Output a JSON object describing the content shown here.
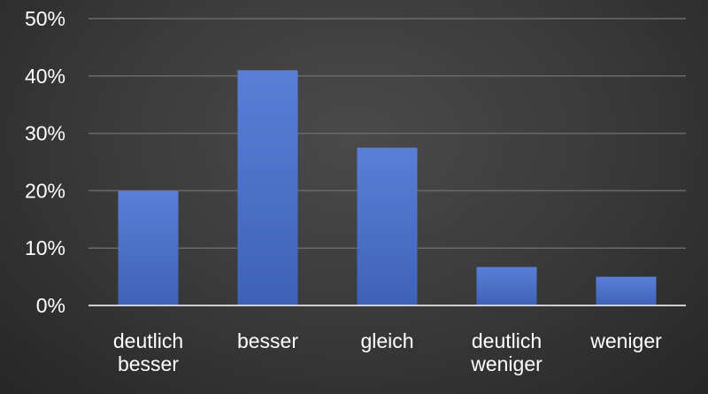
{
  "chart_data": {
    "type": "bar",
    "categories": [
      [
        "deutlich",
        "besser"
      ],
      [
        "besser"
      ],
      [
        "gleich"
      ],
      [
        "deutlich",
        "weniger"
      ],
      [
        "weniger"
      ]
    ],
    "values": [
      20,
      41,
      27.5,
      6.7,
      5
    ],
    "unit": "%",
    "ylim": [
      0,
      50
    ],
    "yticks": [
      0,
      10,
      20,
      30,
      40,
      50
    ],
    "ytick_labels": [
      "0%",
      "10%",
      "20%",
      "30%",
      "40%",
      "50%"
    ],
    "grid": true,
    "legend": "none",
    "title": "",
    "xlabel": "",
    "ylabel": "",
    "colors": {
      "bar_top": "#5a7fd6",
      "bar_bottom": "#3d62b8",
      "grid": "#6a6a6a",
      "axis": "#cfcfcf",
      "text": "#ffffff"
    }
  }
}
